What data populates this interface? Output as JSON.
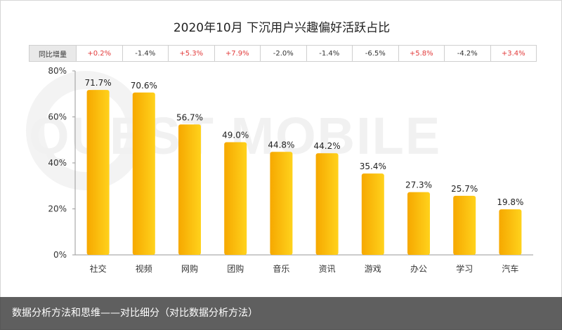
{
  "chart_data": {
    "type": "bar",
    "title": "2020年10月 下沉用户兴趣偏好活跃占比",
    "categories": [
      "社交",
      "视频",
      "网购",
      "团购",
      "音乐",
      "资讯",
      "游戏",
      "办公",
      "学习",
      "汽车"
    ],
    "values": [
      71.7,
      70.6,
      56.7,
      49.0,
      44.8,
      44.2,
      35.4,
      27.3,
      25.7,
      19.8
    ],
    "value_labels": [
      "71.7%",
      "70.6%",
      "56.7%",
      "49.0%",
      "44.8%",
      "44.2%",
      "35.4%",
      "27.3%",
      "25.7%",
      "19.8%"
    ],
    "ylim": [
      0,
      80
    ],
    "yticks": [
      "0%",
      "20%",
      "40%",
      "60%",
      "80%"
    ],
    "grid": false,
    "bar_colors": [
      "#f6a800",
      "#ffd21c"
    ],
    "yoy_table": {
      "header": "同比增量",
      "values": [
        "+0.2%",
        "-1.4%",
        "+5.3%",
        "+7.9%",
        "-2.0%",
        "-1.4%",
        "-6.5%",
        "+5.8%",
        "-4.2%",
        "+3.4%"
      ],
      "positive_color": "#e23a3a",
      "negative_color": "#333333"
    }
  },
  "watermark": "QUEST MOBILE",
  "caption": "数据分析方法和思维——对比细分（对比数据分析方法）"
}
